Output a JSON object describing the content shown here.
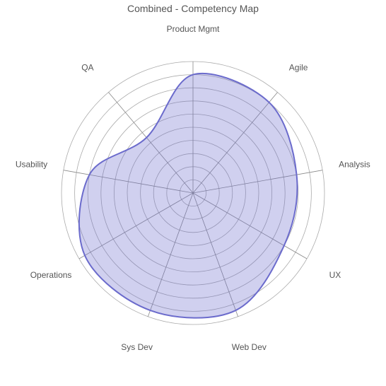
{
  "chart_data": {
    "type": "radar",
    "title": "Combined - Competency Map",
    "categories": [
      "Product Mgmt",
      "Agile",
      "Analysis",
      "UX",
      "Web Dev",
      "Sys Dev",
      "Operations",
      "Usability",
      "QA"
    ],
    "series": [
      {
        "values": [
          9.0,
          9.0,
          8.0,
          8.0,
          9.5,
          9.5,
          9.5,
          8.0,
          5.5
        ],
        "color": "#6b6bcc",
        "fill": "rgba(110,110,205,0.32)"
      }
    ],
    "rlim": [
      0,
      10
    ],
    "grid_rings": 10,
    "line_shape": "spline"
  }
}
